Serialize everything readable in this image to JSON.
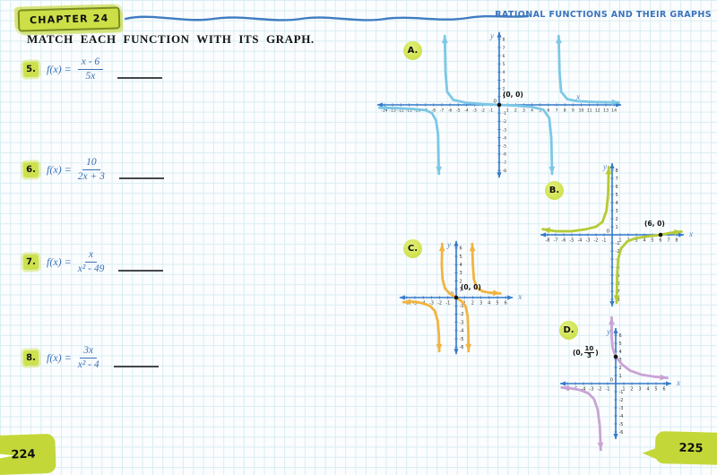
{
  "header": {
    "chapter": "CHAPTER 24",
    "title": "RATIONAL FUNCTIONS AND THEIR GRAPHS"
  },
  "instruction": "MATCH EACH FUNCTION WITH ITS GRAPH.",
  "footer": {
    "left_page": "224",
    "right_page": "225"
  },
  "colors": {
    "accent_green": "#cddc4a",
    "accent_green_border": "#7c8c1d",
    "blue_ink": "#3a6fb8",
    "axis_blue": "#3579c8",
    "curve_a": "#7cc8e6",
    "curve_b": "#b5cb33",
    "curve_c": "#f2b440",
    "curve_d": "#c9a3d6"
  },
  "problems": [
    {
      "number": "5.",
      "prefix": "f(x) =",
      "numerator": "x - 6",
      "denominator": "5x"
    },
    {
      "number": "6.",
      "prefix": "f(x) =",
      "numerator": "10",
      "denominator": "2x + 3"
    },
    {
      "number": "7.",
      "prefix": "f(x) =",
      "numerator": "x",
      "denominator": "x² - 49"
    },
    {
      "number": "8.",
      "prefix": "f(x) =",
      "numerator": "3x",
      "denominator": "x² - 4"
    }
  ],
  "chart_data": [
    {
      "letter": "A",
      "letter_label": "A.",
      "type": "line",
      "xlabel": "x",
      "ylabel": "y",
      "origin_label": "0",
      "xlim": [
        -14,
        14
      ],
      "ylim": [
        -8,
        8
      ],
      "tick_step": 1,
      "color": "#7cc8e6",
      "point": {
        "x": 0,
        "y": 0,
        "label": {
          "text": "(0, 0)"
        }
      },
      "branches": [
        {
          "points": [
            [
              -14.6,
              -0.35
            ],
            [
              -12.5,
              -0.4
            ],
            [
              -10.5,
              -0.5
            ],
            [
              -9,
              -0.65
            ],
            [
              -8.2,
              -1
            ],
            [
              -7.7,
              -1.9
            ],
            [
              -7.45,
              -3.6
            ],
            [
              -7.35,
              -8.4
            ]
          ]
        },
        {
          "points": [
            [
              -6.65,
              8.4
            ],
            [
              -6.55,
              4
            ],
            [
              -6.35,
              1.6
            ],
            [
              -5.6,
              0.6
            ],
            [
              -4,
              0.25
            ],
            [
              -2,
              0.1
            ],
            [
              0,
              0
            ],
            [
              2,
              -0.1
            ],
            [
              4,
              -0.25
            ],
            [
              5.4,
              -0.6
            ],
            [
              6.1,
              -1.6
            ],
            [
              6.35,
              -4
            ],
            [
              6.45,
              -8.4
            ]
          ]
        },
        {
          "points": [
            [
              7.25,
              8.4
            ],
            [
              7.35,
              4
            ],
            [
              7.55,
              1.6
            ],
            [
              8.3,
              0.7
            ],
            [
              9.5,
              0.45
            ],
            [
              11.5,
              0.35
            ],
            [
              14.6,
              0.3
            ]
          ]
        }
      ]
    },
    {
      "letter": "B",
      "letter_label": "B.",
      "type": "line",
      "xlabel": "x",
      "ylabel": "y",
      "origin_label": "0",
      "xlim": [
        -8,
        8
      ],
      "ylim": [
        -8,
        8
      ],
      "tick_step": 1,
      "color": "#b5cb33",
      "point": {
        "x": 6,
        "y": 0,
        "label": {
          "text": "(6, 0)"
        }
      },
      "branches": [
        {
          "points": [
            [
              -8.6,
              0.7
            ],
            [
              -7,
              0.45
            ],
            [
              -5,
              0.45
            ],
            [
              -3.2,
              0.7
            ],
            [
              -2,
              1
            ],
            [
              -1.2,
              1.6
            ],
            [
              -0.7,
              3
            ],
            [
              -0.5,
              5
            ],
            [
              -0.42,
              8.4
            ]
          ]
        },
        {
          "points": [
            [
              0.55,
              -8.4
            ],
            [
              0.62,
              -5
            ],
            [
              0.75,
              -3
            ],
            [
              1.1,
              -1.7
            ],
            [
              1.9,
              -0.8
            ],
            [
              3,
              -0.4
            ],
            [
              4.5,
              -0.18
            ],
            [
              6,
              0
            ],
            [
              7.3,
              0.25
            ],
            [
              8.6,
              0.4
            ]
          ]
        }
      ]
    },
    {
      "letter": "C",
      "letter_label": "C.",
      "type": "line",
      "xlabel": "x",
      "ylabel": "y",
      "origin_label": "0",
      "xlim": [
        -6,
        6
      ],
      "ylim": [
        -6,
        6
      ],
      "tick_step": 1,
      "color": "#f2b440",
      "point": {
        "x": 0,
        "y": 0,
        "label": {
          "text": "(0, 0)"
        }
      },
      "branches": [
        {
          "points": [
            [
              -6.4,
              -0.55
            ],
            [
              -5.2,
              -0.5
            ],
            [
              -4.2,
              -0.65
            ],
            [
              -3.2,
              -1
            ],
            [
              -2.6,
              -1.6
            ],
            [
              -2.25,
              -2.8
            ],
            [
              -2.1,
              -4.5
            ],
            [
              -2.05,
              -6.5
            ]
          ]
        },
        {
          "points": [
            [
              -1.7,
              6.5
            ],
            [
              -1.75,
              4
            ],
            [
              -1.65,
              2.2
            ],
            [
              -1.35,
              1.1
            ],
            [
              -0.8,
              0.5
            ],
            [
              0,
              0
            ],
            [
              0.7,
              -0.5
            ],
            [
              1.15,
              -1.1
            ],
            [
              1.38,
              -2.2
            ],
            [
              1.47,
              -4
            ],
            [
              1.5,
              -6.5
            ]
          ]
        },
        {
          "points": [
            [
              1.95,
              6.5
            ],
            [
              2.02,
              4
            ],
            [
              2.15,
              2.2
            ],
            [
              2.5,
              1.2
            ],
            [
              3.2,
              0.75
            ],
            [
              4.2,
              0.58
            ],
            [
              5.35,
              0.5
            ]
          ]
        }
      ]
    },
    {
      "letter": "D",
      "letter_label": "D.",
      "type": "line",
      "xlabel": "x",
      "ylabel": "y",
      "origin_label": "0",
      "xlim": [
        -6,
        6
      ],
      "ylim": [
        -6,
        6
      ],
      "tick_step": 1,
      "color": "#c9a3d6",
      "point": {
        "x": 0,
        "y": 3.33,
        "label": {
          "pre": "(0,",
          "num": "10",
          "den": "3",
          "post": ")"
        }
      },
      "branches": [
        {
          "points": [
            [
              -0.5,
              8.2
            ],
            [
              -0.5,
              5.8
            ],
            [
              -0.38,
              4.4
            ],
            [
              0,
              3.33
            ],
            [
              0.8,
              2.35
            ],
            [
              1.8,
              1.6
            ],
            [
              3.2,
              1.1
            ],
            [
              4.8,
              0.85
            ],
            [
              6.4,
              0.7
            ]
          ]
        },
        {
          "points": [
            [
              -6.7,
              -0.5
            ],
            [
              -5.5,
              -0.6
            ],
            [
              -4.4,
              -0.8
            ],
            [
              -3.4,
              -1.2
            ],
            [
              -2.7,
              -1.9
            ],
            [
              -2.25,
              -3.2
            ],
            [
              -1.98,
              -5.2
            ],
            [
              -1.85,
              -8.2
            ]
          ]
        }
      ]
    }
  ]
}
